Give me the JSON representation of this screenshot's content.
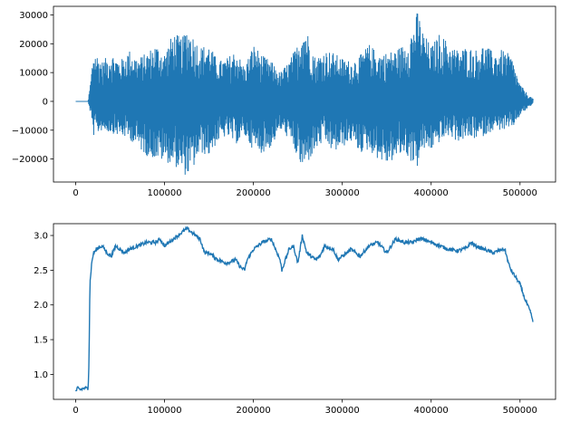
{
  "figure": {
    "background": "#ffffff",
    "line_color": "#1f77b4"
  },
  "chart_data": [
    {
      "type": "line",
      "title": "",
      "xlabel": "",
      "ylabel": "",
      "xlim": [
        -25000,
        540000
      ],
      "ylim": [
        -28000,
        33000
      ],
      "xticks": [
        0,
        100000,
        200000,
        300000,
        400000,
        500000
      ],
      "xtick_labels": [
        "0",
        "100000",
        "200000",
        "300000",
        "400000",
        "500000"
      ],
      "yticks": [
        -20000,
        -10000,
        0,
        10000,
        20000,
        30000
      ],
      "ytick_labels": [
        "−20000",
        "−10000",
        "0",
        "10000",
        "20000",
        "30000"
      ],
      "grid": false,
      "legend": "none",
      "series": [
        {
          "color": "#1f77b4",
          "style": "dense oscillating waveform (envelope shown as upper/lower peaks)",
          "x": [
            0,
            14000,
            17000,
            20000,
            25000,
            30000,
            40000,
            50000,
            60000,
            70000,
            80000,
            90000,
            100000,
            110000,
            120000,
            125000,
            130000,
            140000,
            150000,
            160000,
            170000,
            180000,
            190000,
            200000,
            210000,
            220000,
            230000,
            240000,
            250000,
            255000,
            260000,
            270000,
            280000,
            290000,
            300000,
            310000,
            320000,
            330000,
            340000,
            350000,
            360000,
            370000,
            380000,
            385000,
            390000,
            400000,
            410000,
            420000,
            430000,
            440000,
            450000,
            460000,
            470000,
            480000,
            490000,
            500000,
            510000,
            515000
          ],
          "upper": [
            0,
            0,
            8000,
            18000,
            16000,
            14000,
            17000,
            14000,
            18000,
            15000,
            17000,
            20000,
            17000,
            24000,
            22000,
            26000,
            24000,
            19000,
            20000,
            14000,
            15000,
            18000,
            12000,
            20000,
            16000,
            14000,
            10000,
            14000,
            20000,
            27000,
            25000,
            15000,
            18000,
            17000,
            15000,
            14000,
            16000,
            20000,
            17000,
            17000,
            18000,
            20000,
            26000,
            32000,
            25000,
            19000,
            24000,
            20000,
            18000,
            19000,
            18000,
            20000,
            17000,
            18000,
            16000,
            6000,
            2000,
            1000
          ],
          "lower": [
            0,
            0,
            -5000,
            -12000,
            -11000,
            -10000,
            -11000,
            -12000,
            -13000,
            -16000,
            -19000,
            -20000,
            -21000,
            -22000,
            -25000,
            -26000,
            -25000,
            -18000,
            -19000,
            -14000,
            -12000,
            -15000,
            -12000,
            -17000,
            -18000,
            -16000,
            -10000,
            -13000,
            -20000,
            -24000,
            -22000,
            -17000,
            -14000,
            -18000,
            -16000,
            -14000,
            -18000,
            -17000,
            -20000,
            -22000,
            -20000,
            -18000,
            -22000,
            -23000,
            -17000,
            -17000,
            -14000,
            -12000,
            -14000,
            -13000,
            -13000,
            -12000,
            -10000,
            -10000,
            -10000,
            -5000,
            -2000,
            -1000
          ]
        }
      ]
    },
    {
      "type": "line",
      "title": "",
      "xlabel": "",
      "ylabel": "",
      "xlim": [
        -25000,
        540000
      ],
      "ylim": [
        0.64,
        3.17
      ],
      "xticks": [
        0,
        100000,
        200000,
        300000,
        400000,
        500000
      ],
      "xtick_labels": [
        "0",
        "100000",
        "200000",
        "300000",
        "400000",
        "500000"
      ],
      "yticks": [
        1.0,
        1.5,
        2.0,
        2.5,
        3.0
      ],
      "ytick_labels": [
        "1.0",
        "1.5",
        "2.0",
        "2.5",
        "3.0"
      ],
      "grid": false,
      "legend": "none",
      "series": [
        {
          "color": "#1f77b4",
          "x": [
            0,
            2000,
            5000,
            10000,
            14000,
            15000,
            16000,
            18000,
            20000,
            25000,
            30000,
            35000,
            40000,
            45000,
            50000,
            55000,
            60000,
            70000,
            80000,
            90000,
            95000,
            100000,
            110000,
            115000,
            120000,
            125000,
            130000,
            135000,
            140000,
            145000,
            150000,
            160000,
            170000,
            180000,
            185000,
            190000,
            193000,
            200000,
            210000,
            220000,
            230000,
            232000,
            240000,
            245000,
            250000,
            255000,
            260000,
            270000,
            275000,
            280000,
            290000,
            295000,
            300000,
            310000,
            320000,
            330000,
            340000,
            350000,
            360000,
            370000,
            380000,
            385000,
            390000,
            400000,
            410000,
            420000,
            430000,
            440000,
            445000,
            450000,
            460000,
            470000,
            480000,
            483000,
            487000,
            490000,
            495000,
            500000,
            505000,
            510000,
            513000,
            515000
          ],
          "y": [
            0.75,
            0.8,
            0.78,
            0.8,
            0.8,
            1.2,
            2.3,
            2.6,
            2.75,
            2.82,
            2.85,
            2.75,
            2.7,
            2.85,
            2.8,
            2.75,
            2.8,
            2.85,
            2.9,
            2.9,
            2.95,
            2.85,
            2.95,
            3.0,
            3.05,
            3.1,
            3.05,
            3.0,
            2.95,
            2.75,
            2.75,
            2.65,
            2.6,
            2.65,
            2.55,
            2.5,
            2.65,
            2.8,
            2.9,
            2.95,
            2.65,
            2.5,
            2.8,
            2.85,
            2.6,
            3.0,
            2.75,
            2.65,
            2.7,
            2.85,
            2.8,
            2.65,
            2.7,
            2.8,
            2.7,
            2.85,
            2.9,
            2.75,
            2.95,
            2.9,
            2.9,
            2.95,
            2.95,
            2.9,
            2.85,
            2.8,
            2.78,
            2.82,
            2.9,
            2.85,
            2.8,
            2.75,
            2.8,
            2.8,
            2.6,
            2.5,
            2.4,
            2.3,
            2.1,
            1.95,
            1.85,
            1.7
          ]
        }
      ]
    }
  ]
}
